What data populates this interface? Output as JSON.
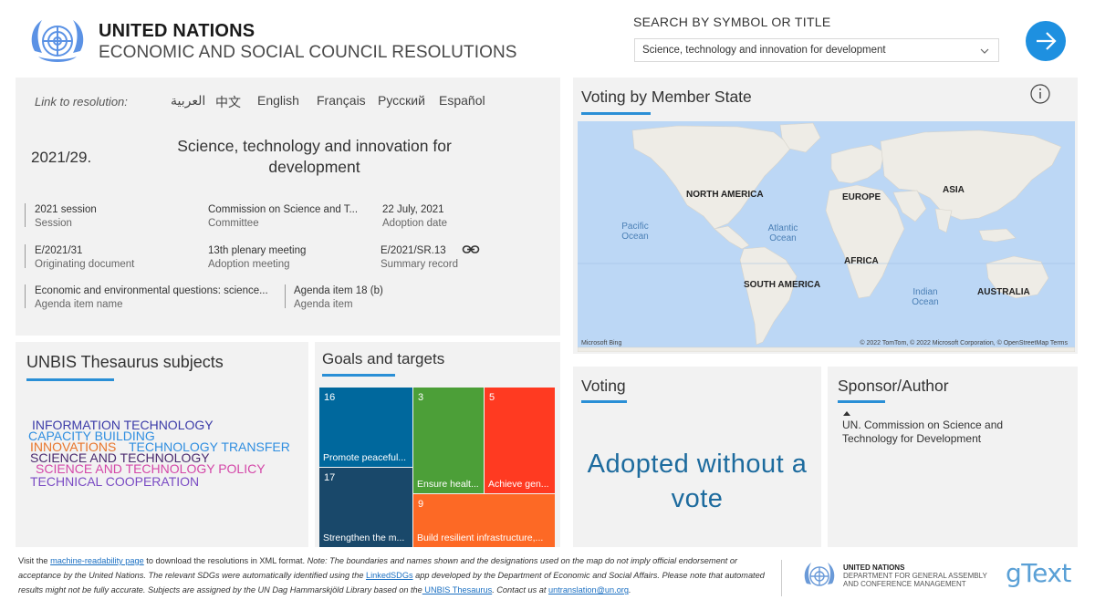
{
  "header": {
    "org_title": "UNITED NATIONS",
    "org_subtitle": "ECONOMIC AND SOCIAL COUNCIL RESOLUTIONS",
    "search_label": "SEARCH BY SYMBOL OR TITLE",
    "search_value": "Science, technology and innovation for development"
  },
  "resolution": {
    "link_label": "Link to resolution:",
    "languages": [
      "العربية",
      "中文",
      "English",
      "Français",
      "Русский",
      "Español"
    ],
    "number": "2021/29.",
    "title": "Science, technology and innovation for development",
    "meta": {
      "session": {
        "value": "2021 session",
        "key": "Session"
      },
      "committee": {
        "value": "Commission on Science and T...",
        "key": "Committee"
      },
      "adoption_date": {
        "value": "22 July, 2021",
        "key": "Adoption date"
      },
      "originating_document": {
        "value": "E/2021/31",
        "key": "Originating document"
      },
      "adoption_meeting": {
        "value": "13th plenary meeting",
        "key": "Adoption meeting"
      },
      "summary_record": {
        "value": "E/2021/SR.13",
        "key": "Summary record"
      },
      "agenda_item_name": {
        "value": "Economic and environmental questions: science...",
        "key": "Agenda item name"
      },
      "agenda_item": {
        "value": "Agenda item 18 (b)",
        "key": "Agenda item"
      }
    }
  },
  "map": {
    "title": "Voting by Member State",
    "continents": [
      "NORTH AMERICA",
      "EUROPE",
      "ASIA",
      "AFRICA",
      "SOUTH AMERICA",
      "AUSTRALIA"
    ],
    "oceans": [
      "Pacific Ocean",
      "Atlantic Ocean",
      "Indian Ocean"
    ],
    "bing_label": "Microsoft Bing",
    "credit": "© 2022 TomTom, © 2022 Microsoft Corporation, © OpenStreetMap  Terms"
  },
  "thesaurus": {
    "title": "UNBIS Thesaurus subjects",
    "subjects": [
      {
        "text": "INFORMATION TECHNOLOGY",
        "color": "#3b3ba8"
      },
      {
        "text": "CAPACITY BUILDING",
        "color": "#2f8ee0"
      },
      {
        "text": "INNOVATIONS",
        "color": "#e8752a"
      },
      {
        "text": "TECHNOLOGY TRANSFER",
        "color": "#2f8ee0"
      },
      {
        "text": "SCIENCE AND TECHNOLOGY",
        "color": "#4a2a6e"
      },
      {
        "text": "SCIENCE AND TECHNOLOGY POLICY",
        "color": "#d447a8"
      },
      {
        "text": "TECHNICAL COOPERATION",
        "color": "#7a4bc4"
      }
    ]
  },
  "goals": {
    "title": "Goals and targets",
    "tiles": [
      {
        "number": "16",
        "label": "Promote peaceful...",
        "color": "#00689d"
      },
      {
        "number": "17",
        "label": "Strengthen the m...",
        "color": "#19486a"
      },
      {
        "number": "3",
        "label": "Ensure healt...",
        "color": "#4c9f38"
      },
      {
        "number": "5",
        "label": "Achieve gen...",
        "color": "#ff3a21"
      },
      {
        "number": "9",
        "label": "Build resilient infrastructure,...",
        "color": "#fd6925"
      }
    ]
  },
  "voting": {
    "title": "Voting",
    "result": "Adopted without a vote"
  },
  "sponsor": {
    "title": "Sponsor/Author",
    "text": "UN. Commission on Science and Technology for Development"
  },
  "footer": {
    "p1": "Visit the ",
    "link1": "machine-readability page",
    "p2": " to download the resolutions in XML format. ",
    "note": "Note: The boundaries and names shown and the designations used on the map do not imply official endorsement or acceptance by the United Nations. The relevant SDGs were automatically identified using the ",
    "link2": "LinkedSDGs",
    "p3": " app developed by the Department of Economic and Social Affairs. Please note that automated results might not be fully accurate. Subjects are assigned by the UN Dag Hammarskjöld Library based on the",
    "link3": " UNBIS Thesaurus",
    "p4": ". Contact us at ",
    "link4": "untranslation@un.org",
    "p5": ".",
    "dgacm_line1": "UNITED NATIONS",
    "dgacm_line2": "DEPARTMENT FOR GENERAL ASSEMBLY",
    "dgacm_line3": "AND CONFERENCE MANAGEMENT",
    "gtext": "gText"
  },
  "icons": {
    "un_logo": "un-emblem-icon",
    "go": "arrow-right-icon",
    "chevron": "chevron-down-icon",
    "info": "info-icon",
    "link": "link-icon"
  },
  "colors": {
    "accent": "#2a8fd6",
    "go_button": "#1e90e0",
    "voting_text": "#1d6b9e",
    "panel": "#f2f2f2"
  }
}
